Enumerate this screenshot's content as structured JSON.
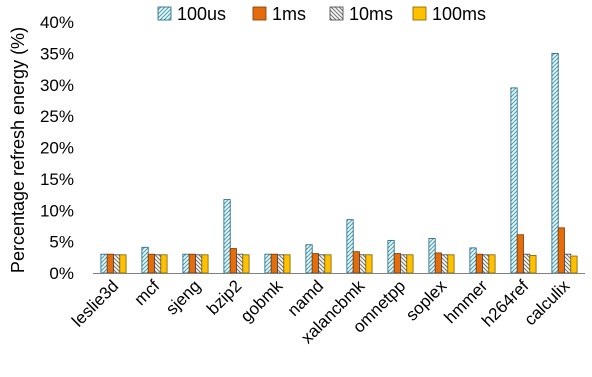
{
  "chart_data": {
    "type": "bar",
    "title": "",
    "xlabel": "",
    "ylabel": "Percentage refresh energy (%)",
    "ylim": [
      0,
      40
    ],
    "yticks": [
      0,
      5,
      10,
      15,
      20,
      25,
      30,
      35,
      40
    ],
    "ytick_labels": [
      "0%",
      "5%",
      "10%",
      "15%",
      "20%",
      "25%",
      "30%",
      "35%",
      "40%"
    ],
    "grid": false,
    "legend_position": "top",
    "categories": [
      "leslie3d",
      "mcf",
      "sjeng",
      "bzip2",
      "gobmk",
      "namd",
      "xalancbmk",
      "omnetpp",
      "soplex",
      "hmmer",
      "h264ref",
      "calculix"
    ],
    "series": [
      {
        "name": "100us",
        "pattern": "diagonal-hatch",
        "color": "#4BACC6",
        "values": [
          3.0,
          4.1,
          3.0,
          11.7,
          3.0,
          4.5,
          8.5,
          5.2,
          5.5,
          4.0,
          29.5,
          35.0
        ]
      },
      {
        "name": "1ms",
        "pattern": "solid",
        "color": "#E46C0A",
        "values": [
          3.0,
          3.0,
          3.0,
          3.9,
          3.0,
          3.1,
          3.4,
          3.1,
          3.2,
          3.0,
          6.1,
          7.2
        ]
      },
      {
        "name": "10ms",
        "pattern": "diagonal-hatch",
        "color": "#7F7F7F",
        "values": [
          2.9,
          2.9,
          2.9,
          3.0,
          2.9,
          2.9,
          2.9,
          2.9,
          2.9,
          2.9,
          3.0,
          3.0
        ]
      },
      {
        "name": "100ms",
        "pattern": "solid",
        "color": "#FFC000",
        "values": [
          2.9,
          2.9,
          2.9,
          2.9,
          2.9,
          2.9,
          2.9,
          2.9,
          2.9,
          2.9,
          2.8,
          2.7
        ]
      }
    ]
  }
}
